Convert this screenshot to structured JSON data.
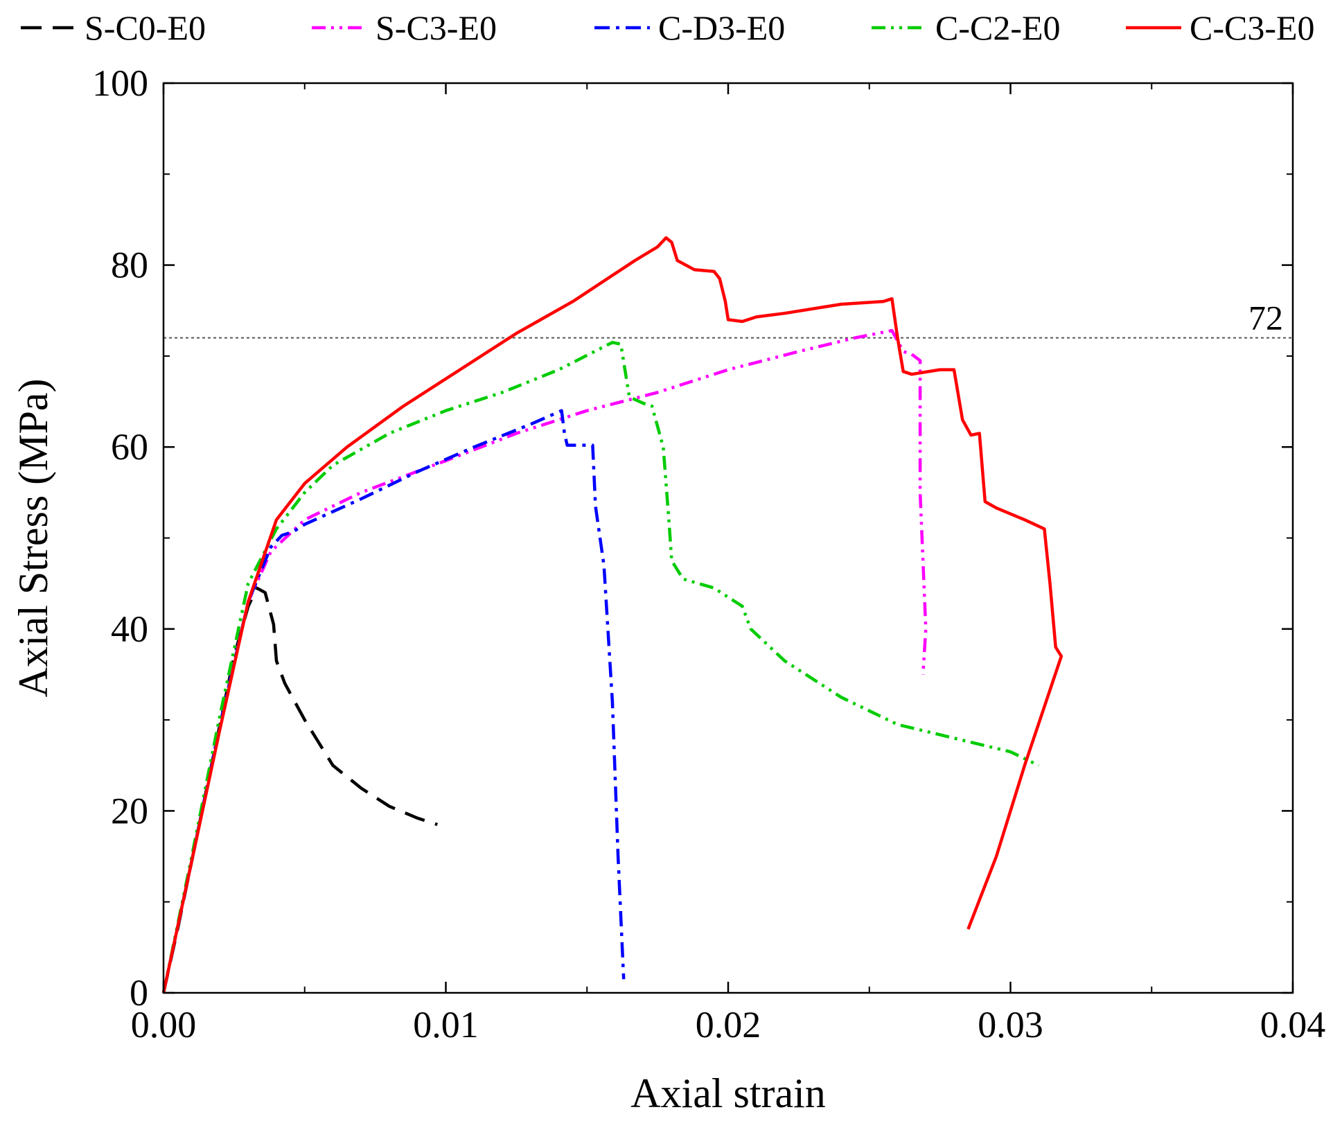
{
  "chart_data": {
    "type": "line",
    "title": "",
    "xlabel": "Axial strain",
    "ylabel": "Axial Stress (MPa)",
    "xlim": [
      0,
      0.04
    ],
    "ylim": [
      0,
      100
    ],
    "xticks": [
      0.0,
      0.01,
      0.02,
      0.03,
      0.04
    ],
    "xtick_labels": [
      "0.00",
      "0.01",
      "0.02",
      "0.03",
      "0.04"
    ],
    "yticks": [
      0,
      20,
      40,
      60,
      80,
      100
    ],
    "ytick_labels": [
      "0",
      "20",
      "40",
      "60",
      "80",
      "100"
    ],
    "grid": false,
    "legend_position": "top",
    "reference_line": {
      "y": 72,
      "label": "72",
      "color": "#555555",
      "style": "dotted"
    },
    "series": [
      {
        "name": "S-C0-E0",
        "color": "#000000",
        "dash": "dash",
        "points": [
          [
            0,
            0
          ],
          [
            0.0005,
            7
          ],
          [
            0.001,
            14.5
          ],
          [
            0.0015,
            22
          ],
          [
            0.002,
            29.5
          ],
          [
            0.0025,
            37
          ],
          [
            0.003,
            42.5
          ],
          [
            0.0033,
            44.5
          ],
          [
            0.0036,
            44
          ],
          [
            0.0039,
            40.5
          ],
          [
            0.004,
            36.5
          ],
          [
            0.0043,
            34
          ],
          [
            0.005,
            30
          ],
          [
            0.006,
            25
          ],
          [
            0.007,
            22.5
          ],
          [
            0.008,
            20.5
          ],
          [
            0.009,
            19.2
          ],
          [
            0.0097,
            18.5
          ]
        ]
      },
      {
        "name": "S-C3-E0",
        "color": "#ff00ff",
        "dash": "dashdotdot",
        "points": [
          [
            0,
            0
          ],
          [
            0.001,
            14.5
          ],
          [
            0.002,
            29.5
          ],
          [
            0.003,
            43
          ],
          [
            0.0038,
            48.5
          ],
          [
            0.005,
            52
          ],
          [
            0.007,
            55
          ],
          [
            0.01,
            58.5
          ],
          [
            0.0125,
            61.5
          ],
          [
            0.015,
            64
          ],
          [
            0.0175,
            66
          ],
          [
            0.02,
            68.5
          ],
          [
            0.0225,
            70.5
          ],
          [
            0.0245,
            72
          ],
          [
            0.0258,
            72.8
          ],
          [
            0.0262,
            70.5
          ],
          [
            0.0265,
            70.2
          ],
          [
            0.0268,
            69.5
          ],
          [
            0.0268,
            55
          ],
          [
            0.027,
            40
          ],
          [
            0.0269,
            35
          ]
        ]
      },
      {
        "name": "C-D3-E0",
        "color": "#0000ff",
        "dash": "dashdot",
        "points": [
          [
            0,
            0
          ],
          [
            0.001,
            14.5
          ],
          [
            0.002,
            29.5
          ],
          [
            0.003,
            43
          ],
          [
            0.0038,
            49
          ],
          [
            0.0042,
            50.3
          ],
          [
            0.0046,
            50.7
          ],
          [
            0.005,
            51.5
          ],
          [
            0.007,
            54.3
          ],
          [
            0.009,
            57.3
          ],
          [
            0.011,
            60
          ],
          [
            0.013,
            62.5
          ],
          [
            0.0141,
            64
          ],
          [
            0.0142,
            61.5
          ],
          [
            0.0143,
            60.2
          ],
          [
            0.0152,
            60.2
          ],
          [
            0.0153,
            53.5
          ],
          [
            0.0156,
            47
          ],
          [
            0.0159,
            32
          ],
          [
            0.0161,
            15
          ],
          [
            0.0163,
            1.5
          ]
        ]
      },
      {
        "name": "C-C2-E0",
        "color": "#00cc00",
        "dash": "dashdotdot",
        "points": [
          [
            0,
            0
          ],
          [
            0.001,
            15
          ],
          [
            0.002,
            30.5
          ],
          [
            0.003,
            45
          ],
          [
            0.004,
            51
          ],
          [
            0.005,
            55
          ],
          [
            0.006,
            58
          ],
          [
            0.008,
            61.5
          ],
          [
            0.01,
            64
          ],
          [
            0.012,
            66
          ],
          [
            0.014,
            68.5
          ],
          [
            0.0159,
            71.5
          ],
          [
            0.0162,
            71.3
          ],
          [
            0.0165,
            65.5
          ],
          [
            0.017,
            64.8
          ],
          [
            0.0173,
            64.5
          ],
          [
            0.0177,
            60
          ],
          [
            0.0179,
            52
          ],
          [
            0.018,
            47.5
          ],
          [
            0.0184,
            45.5
          ],
          [
            0.0195,
            44.5
          ],
          [
            0.0205,
            42.5
          ],
          [
            0.0208,
            40
          ],
          [
            0.022,
            36.5
          ],
          [
            0.024,
            32.5
          ],
          [
            0.026,
            29.5
          ],
          [
            0.028,
            28
          ],
          [
            0.03,
            26.5
          ],
          [
            0.031,
            25
          ]
        ]
      },
      {
        "name": "C-C3-E0",
        "color": "#ff0000",
        "dash": "solid",
        "points": [
          [
            0,
            0
          ],
          [
            0.001,
            14.5
          ],
          [
            0.002,
            29
          ],
          [
            0.003,
            43
          ],
          [
            0.004,
            52
          ],
          [
            0.005,
            56
          ],
          [
            0.0065,
            60
          ],
          [
            0.0085,
            64.5
          ],
          [
            0.0105,
            68.5
          ],
          [
            0.0125,
            72.5
          ],
          [
            0.0145,
            76
          ],
          [
            0.0167,
            80.5
          ],
          [
            0.0175,
            82
          ],
          [
            0.0178,
            83
          ],
          [
            0.018,
            82.5
          ],
          [
            0.0182,
            80.5
          ],
          [
            0.0188,
            79.5
          ],
          [
            0.0195,
            79.3
          ],
          [
            0.0197,
            78.5
          ],
          [
            0.0199,
            76
          ],
          [
            0.02,
            74
          ],
          [
            0.0205,
            73.8
          ],
          [
            0.021,
            74.3
          ],
          [
            0.022,
            74.7
          ],
          [
            0.024,
            75.7
          ],
          [
            0.0255,
            76
          ],
          [
            0.0258,
            76.3
          ],
          [
            0.026,
            72
          ],
          [
            0.0262,
            68.3
          ],
          [
            0.0265,
            68
          ],
          [
            0.0275,
            68.5
          ],
          [
            0.028,
            68.5
          ],
          [
            0.0283,
            63
          ],
          [
            0.0286,
            61.3
          ],
          [
            0.0289,
            61.5
          ],
          [
            0.0291,
            54
          ],
          [
            0.0295,
            53.3
          ],
          [
            0.0305,
            52
          ],
          [
            0.0312,
            51
          ],
          [
            0.0314,
            45
          ],
          [
            0.0316,
            38
          ],
          [
            0.0318,
            37
          ],
          [
            0.0305,
            25
          ],
          [
            0.0295,
            15
          ],
          [
            0.0285,
            7
          ]
        ]
      }
    ]
  }
}
